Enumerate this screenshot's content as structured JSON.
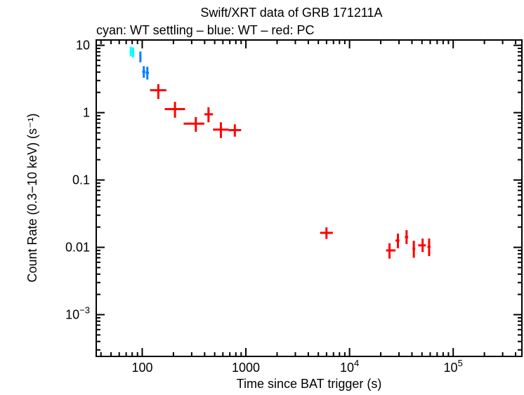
{
  "chart_data": {
    "type": "scatter",
    "title": "Swift/XRT data of GRB 171211A",
    "subtitle": "cyan: WT settling – blue: WT – red: PC",
    "xlabel": "Time since BAT trigger (s)",
    "ylabel": "Count Rate (0.3−10 keV) (s⁻¹)",
    "xscale": "log",
    "yscale": "log",
    "xlim": [
      36,
      460000
    ],
    "ylim": [
      0.00024,
      12
    ],
    "x_ticks": [
      {
        "v": 100,
        "label": "100"
      },
      {
        "v": 1000,
        "label": "1000"
      },
      {
        "v": 10000,
        "label": "10",
        "exp": "4"
      },
      {
        "v": 100000,
        "label": "10",
        "exp": "5"
      }
    ],
    "y_ticks": [
      {
        "v": 10,
        "label": "10"
      },
      {
        "v": 1,
        "label": "1"
      },
      {
        "v": 0.1,
        "label": "0.1"
      },
      {
        "v": 0.01,
        "label": "0.01"
      },
      {
        "v": 0.001,
        "label": "10",
        "exp": "−3"
      }
    ],
    "grid": false,
    "series": [
      {
        "name": "WT settling",
        "color": "#00ffff",
        "points": [
          {
            "x": 77.6,
            "xlo": 76,
            "xhi": 79.5,
            "y": 8.2,
            "ylo": 6.9,
            "yhi": 9.5
          },
          {
            "x": 81.6,
            "xlo": 79.5,
            "xhi": 84,
            "y": 7.9,
            "ylo": 6.6,
            "yhi": 9.3
          }
        ]
      },
      {
        "name": "WT",
        "color": "#0080ff",
        "points": [
          {
            "x": 96,
            "xlo": 94,
            "xhi": 98,
            "y": 6.8,
            "ylo": 5.6,
            "yhi": 8.1
          },
          {
            "x": 103.6,
            "xlo": 100,
            "xhi": 107,
            "y": 4.05,
            "ylo": 3.3,
            "yhi": 4.9
          },
          {
            "x": 112,
            "xlo": 108,
            "xhi": 116,
            "y": 3.9,
            "ylo": 3.1,
            "yhi": 4.8
          }
        ]
      },
      {
        "name": "PC",
        "color": "#ff0000",
        "points": [
          {
            "x": 143,
            "xlo": 119,
            "xhi": 171,
            "y": 2.15,
            "ylo": 1.6,
            "yhi": 2.65
          },
          {
            "x": 207,
            "xlo": 165,
            "xhi": 259,
            "y": 1.13,
            "ylo": 0.84,
            "yhi": 1.45
          },
          {
            "x": 329,
            "xlo": 251,
            "xhi": 398,
            "y": 0.686,
            "ylo": 0.52,
            "yhi": 0.86
          },
          {
            "x": 436,
            "xlo": 398,
            "xhi": 482,
            "y": 0.946,
            "ylo": 0.72,
            "yhi": 1.2
          },
          {
            "x": 574,
            "xlo": 482,
            "xhi": 680,
            "y": 0.56,
            "ylo": 0.42,
            "yhi": 0.72
          },
          {
            "x": 782,
            "xlo": 680,
            "xhi": 900,
            "y": 0.55,
            "ylo": 0.44,
            "yhi": 0.67
          },
          {
            "x": 5990,
            "xlo": 5200,
            "xhi": 6900,
            "y": 0.0164,
            "ylo": 0.0133,
            "yhi": 0.0198
          },
          {
            "x": 24300,
            "xlo": 22500,
            "xhi": 27800,
            "y": 0.009,
            "ylo": 0.0068,
            "yhi": 0.0115
          },
          {
            "x": 29300,
            "xlo": 27800,
            "xhi": 30300,
            "y": 0.0126,
            "ylo": 0.0097,
            "yhi": 0.016
          },
          {
            "x": 35500,
            "xlo": 34200,
            "xhi": 36800,
            "y": 0.0142,
            "ylo": 0.0112,
            "yhi": 0.018
          },
          {
            "x": 41700,
            "xlo": 40500,
            "xhi": 43000,
            "y": 0.0095,
            "ylo": 0.007,
            "yhi": 0.0125
          },
          {
            "x": 50700,
            "xlo": 46000,
            "xhi": 54500,
            "y": 0.0107,
            "ylo": 0.0085,
            "yhi": 0.0135
          },
          {
            "x": 58600,
            "xlo": 56500,
            "xhi": 60500,
            "y": 0.0102,
            "ylo": 0.0074,
            "yhi": 0.0135
          }
        ]
      }
    ]
  }
}
